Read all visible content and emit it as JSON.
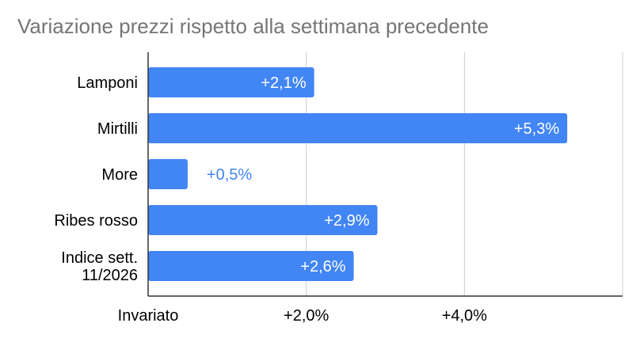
{
  "chart_data": {
    "type": "bar",
    "orientation": "horizontal",
    "title": "Variazione prezzi rispetto alla settimana precedente",
    "xlabel": "",
    "ylabel": "",
    "categories": [
      [
        "Lamponi"
      ],
      [
        "Mirtilli"
      ],
      [
        "More"
      ],
      [
        "Ribes rosso"
      ],
      [
        "Indice sett.",
        "11/2026"
      ]
    ],
    "values": [
      2.1,
      5.3,
      0.5,
      2.9,
      2.6
    ],
    "data_labels": [
      "+2,1%",
      "+5,3%",
      "+0,5%",
      "+2,9%",
      "+2,6%"
    ],
    "xlim": [
      0,
      6
    ],
    "x_ticks": [
      {
        "value": 0,
        "label": "Invariato"
      },
      {
        "value": 2,
        "label": "+2,0%"
      },
      {
        "value": 4,
        "label": "+4,0%"
      }
    ],
    "grid": true,
    "legend": "none",
    "colors": {
      "bar": "#4285f4",
      "grid": "#cccccc",
      "axis": "#333333",
      "title": "#757575"
    }
  }
}
